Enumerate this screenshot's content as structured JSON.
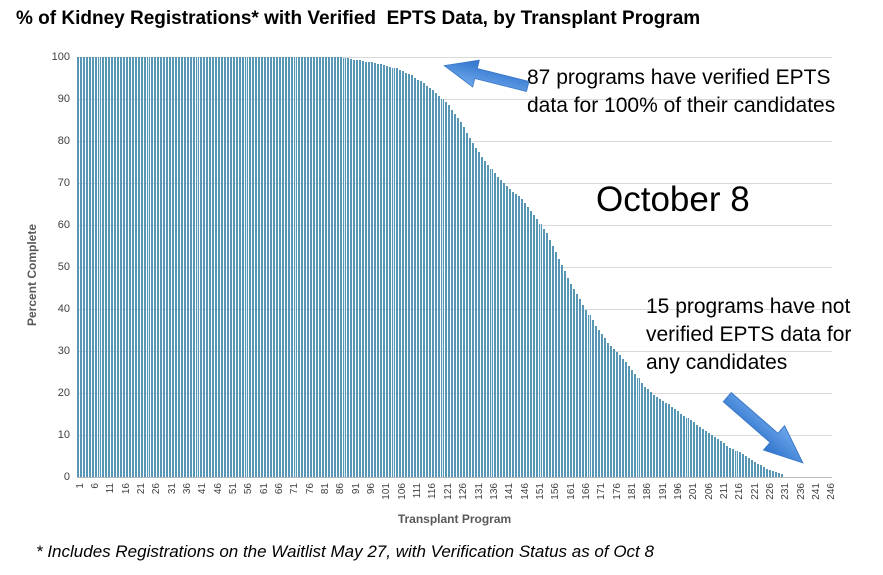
{
  "title": "% of Kidney Registrations* with Verified  EPTS Data, by Transplant Program",
  "date_label": "October 8",
  "annotations": {
    "top_lines": [
      "87 programs have verified EPTS",
      "data for 100% of their candidates"
    ],
    "bottom_lines": [
      "15 programs have not",
      "verified EPTS data for",
      "any candidates"
    ]
  },
  "footnote": "* Includes Registrations on the Waitlist May 27, with Verification Status as of Oct 8",
  "colors": {
    "bar_edge": "#5796b5",
    "bar_fill": "#dcedf4",
    "gridline": "#d9d9d9",
    "axis_line": "#b8b8b8",
    "arrow_blue": "#4186d8",
    "axis_text": "#404040",
    "axis_title_text": "#595959"
  },
  "chart_data": {
    "type": "bar",
    "title": "% of Kidney Registrations* with Verified  EPTS Data, by Transplant Program",
    "xlabel": "Transplant Program",
    "ylabel": "Percent Complete",
    "ylim": [
      0,
      100
    ],
    "yticks": [
      0,
      10,
      20,
      30,
      40,
      50,
      60,
      70,
      80,
      90,
      100
    ],
    "xticks": [
      1,
      6,
      11,
      16,
      21,
      26,
      31,
      36,
      41,
      46,
      51,
      56,
      61,
      66,
      71,
      76,
      81,
      86,
      91,
      96,
      101,
      106,
      111,
      116,
      121,
      126,
      131,
      136,
      141,
      146,
      151,
      156,
      161,
      166,
      171,
      176,
      181,
      186,
      191,
      196,
      201,
      206,
      211,
      216,
      221,
      226,
      231,
      236,
      241,
      246
    ],
    "grid": "horizontal",
    "legend": null,
    "n_programs": 246,
    "programs_at_100_percent": 87,
    "programs_at_0_percent": 15,
    "values": [
      100,
      100,
      100,
      100,
      100,
      100,
      100,
      100,
      100,
      100,
      100,
      100,
      100,
      100,
      100,
      100,
      100,
      100,
      100,
      100,
      100,
      100,
      100,
      100,
      100,
      100,
      100,
      100,
      100,
      100,
      100,
      100,
      100,
      100,
      100,
      100,
      100,
      100,
      100,
      100,
      100,
      100,
      100,
      100,
      100,
      100,
      100,
      100,
      100,
      100,
      100,
      100,
      100,
      100,
      100,
      100,
      100,
      100,
      100,
      100,
      100,
      100,
      100,
      100,
      100,
      100,
      100,
      100,
      100,
      100,
      100,
      100,
      100,
      100,
      100,
      100,
      100,
      100,
      100,
      100,
      100,
      100,
      100,
      100,
      100,
      100,
      100,
      99.8,
      99.7,
      99.5,
      99.4,
      99.3,
      99.2,
      99.0,
      98.9,
      98.8,
      98.7,
      98.5,
      98.4,
      98.3,
      98.1,
      97.9,
      97.7,
      97.5,
      97.3,
      97.0,
      96.6,
      96.3,
      96.0,
      95.6,
      95.1,
      94.6,
      94.2,
      93.7,
      93.2,
      92.6,
      92.1,
      91.5,
      90.8,
      90.0,
      89.3,
      88.5,
      87.5,
      86.5,
      85.5,
      84.5,
      83.3,
      82.0,
      80.8,
      79.5,
      78.4,
      77.4,
      76.3,
      75.2,
      74.3,
      73.4,
      72.4,
      71.5,
      70.8,
      70.0,
      69.3,
      68.5,
      67.9,
      67.4,
      66.8,
      66.2,
      65.3,
      64.4,
      63.4,
      62.5,
      61.4,
      60.3,
      59.1,
      58.0,
      56.5,
      55.0,
      53.5,
      52.0,
      50.5,
      49.0,
      47.5,
      46.0,
      44.8,
      43.5,
      42.3,
      41.0,
      39.8,
      38.5,
      37.3,
      36.0,
      35.0,
      34.0,
      33.0,
      32.0,
      31.3,
      30.5,
      29.8,
      29.0,
      28.1,
      27.3,
      26.4,
      25.5,
      24.5,
      23.5,
      22.5,
      21.5,
      20.9,
      20.3,
      19.6,
      19.0,
      18.6,
      18.2,
      17.7,
      17.3,
      16.7,
      16.2,
      15.6,
      15.0,
      14.5,
      14.0,
      13.5,
      13.0,
      12.5,
      12.0,
      11.5,
      11.0,
      10.5,
      10.0,
      9.5,
      9.0,
      8.5,
      8.0,
      7.5,
      7.0,
      6.6,
      6.3,
      5.9,
      5.5,
      5.0,
      4.5,
      4.0,
      3.5,
      3.1,
      2.8,
      2.4,
      2.0,
      1.7,
      1.5,
      1.2,
      0.9,
      0.6,
      0,
      0,
      0,
      0,
      0,
      0,
      0,
      0,
      0,
      0,
      0,
      0,
      0,
      0,
      0
    ]
  }
}
